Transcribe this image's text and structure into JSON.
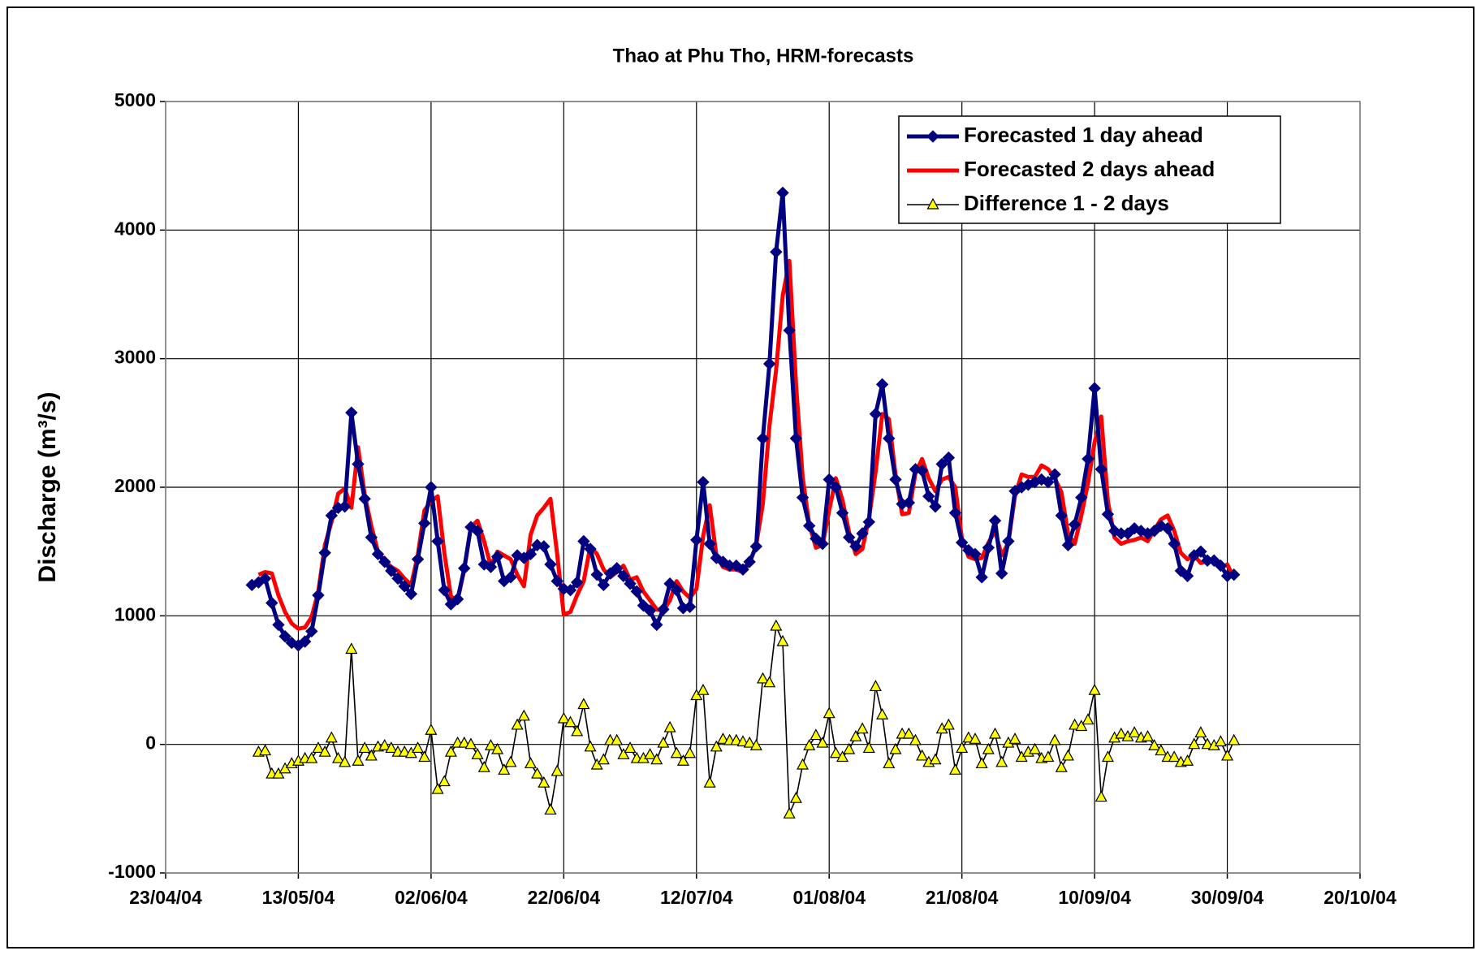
{
  "chart_data": {
    "type": "line",
    "title": "Thao at Phu Tho, HRM-forecasts",
    "ylabel": "Discharge (m³/s)",
    "x": [
      "2004-05-06",
      "2004-05-07",
      "2004-05-08",
      "2004-05-09",
      "2004-05-10",
      "2004-05-11",
      "2004-05-12",
      "2004-05-13",
      "2004-05-14",
      "2004-05-15",
      "2004-05-16",
      "2004-05-17",
      "2004-05-18",
      "2004-05-19",
      "2004-05-20",
      "2004-05-21",
      "2004-05-22",
      "2004-05-23",
      "2004-05-24",
      "2004-05-25",
      "2004-05-26",
      "2004-05-27",
      "2004-05-28",
      "2004-05-29",
      "2004-05-30",
      "2004-05-31",
      "2004-06-01",
      "2004-06-02",
      "2004-06-03",
      "2004-06-04",
      "2004-06-05",
      "2004-06-06",
      "2004-06-07",
      "2004-06-08",
      "2004-06-09",
      "2004-06-10",
      "2004-06-11",
      "2004-06-12",
      "2004-06-13",
      "2004-06-14",
      "2004-06-15",
      "2004-06-16",
      "2004-06-17",
      "2004-06-18",
      "2004-06-19",
      "2004-06-20",
      "2004-06-21",
      "2004-06-22",
      "2004-06-23",
      "2004-06-24",
      "2004-06-25",
      "2004-06-26",
      "2004-06-27",
      "2004-06-28",
      "2004-06-29",
      "2004-06-30",
      "2004-07-01",
      "2004-07-02",
      "2004-07-03",
      "2004-07-04",
      "2004-07-05",
      "2004-07-06",
      "2004-07-07",
      "2004-07-08",
      "2004-07-09",
      "2004-07-10",
      "2004-07-11",
      "2004-07-12",
      "2004-07-13",
      "2004-07-14",
      "2004-07-15",
      "2004-07-16",
      "2004-07-17",
      "2004-07-18",
      "2004-07-19",
      "2004-07-20",
      "2004-07-21",
      "2004-07-22",
      "2004-07-23",
      "2004-07-24",
      "2004-07-25",
      "2004-07-26",
      "2004-07-27",
      "2004-07-28",
      "2004-07-29",
      "2004-07-30",
      "2004-07-31",
      "2004-08-01",
      "2004-08-02",
      "2004-08-03",
      "2004-08-04",
      "2004-08-05",
      "2004-08-06",
      "2004-08-07",
      "2004-08-08",
      "2004-08-09",
      "2004-08-10",
      "2004-08-11",
      "2004-08-12",
      "2004-08-13",
      "2004-08-14",
      "2004-08-15",
      "2004-08-16",
      "2004-08-17",
      "2004-08-18",
      "2004-08-19",
      "2004-08-20",
      "2004-08-21",
      "2004-08-22",
      "2004-08-23",
      "2004-08-24",
      "2004-08-25",
      "2004-08-26",
      "2004-08-27",
      "2004-08-28",
      "2004-08-29",
      "2004-08-30",
      "2004-08-31",
      "2004-09-01",
      "2004-09-02",
      "2004-09-03",
      "2004-09-04",
      "2004-09-05",
      "2004-09-06",
      "2004-09-07",
      "2004-09-08",
      "2004-09-09",
      "2004-09-10",
      "2004-09-11",
      "2004-09-12",
      "2004-09-13",
      "2004-09-14",
      "2004-09-15",
      "2004-09-16",
      "2004-09-17",
      "2004-09-18",
      "2004-09-19",
      "2004-09-20",
      "2004-09-21",
      "2004-09-22",
      "2004-09-23",
      "2004-09-24",
      "2004-09-25",
      "2004-09-26",
      "2004-09-27",
      "2004-09-28",
      "2004-09-29",
      "2004-09-30",
      "2004-10-01"
    ],
    "series": [
      {
        "name": "Forecasted 2 days ahead",
        "color": "#ff0000",
        "marker": "none",
        "values": [
          null,
          1320,
          1340,
          1330,
          1160,
          1030,
          940,
          900,
          910,
          990,
          1190,
          1550,
          1730,
          1950,
          1990,
          1840,
          2310,
          1940,
          1700,
          1500,
          1430,
          1380,
          1350,
          1290,
          1240,
          1470,
          1820,
          1890,
          1930,
          1490,
          1150,
          1120,
          1360,
          1690,
          1740,
          1580,
          1390,
          1500,
          1470,
          1440,
          1320,
          1230,
          1630,
          1780,
          1840,
          1910,
          1480,
          1010,
          1030,
          1160,
          1270,
          1540,
          1480,
          1360,
          1300,
          1340,
          1390,
          1280,
          1300,
          1190,
          1120,
          1050,
          1040,
          1120,
          1270,
          1190,
          1140,
          1210,
          1620,
          1860,
          1470,
          1380,
          1360,
          1360,
          1340,
          1410,
          1550,
          1870,
          2480,
          2910,
          3490,
          3760,
          2800,
          2080,
          1710,
          1530,
          1550,
          1820,
          2070,
          1900,
          1650,
          1480,
          1520,
          1760,
          2120,
          2570,
          2530,
          2100,
          1790,
          1800,
          2110,
          2220,
          2070,
          1970,
          2060,
          2080,
          2000,
          1600,
          1460,
          1440,
          1450,
          1570,
          1660,
          1470,
          1570,
          1930,
          2100,
          2080,
          2080,
          2170,
          2140,
          2070,
          1960,
          1640,
          1560,
          1780,
          2030,
          2350,
          2550,
          1890,
          1610,
          1560,
          1580,
          1590,
          1610,
          1580,
          1670,
          1750,
          1780,
          1660,
          1490,
          1440,
          1470,
          1410,
          1430,
          1440,
          1370,
          1400,
          1290
        ]
      },
      {
        "name": "Forecasted 1 day ahead",
        "color": "#000080",
        "marker": "diamond",
        "values": [
          1240,
          1260,
          1290,
          1100,
          930,
          840,
          790,
          770,
          800,
          880,
          1160,
          1490,
          1780,
          1840,
          1850,
          2580,
          2180,
          1910,
          1610,
          1480,
          1420,
          1350,
          1290,
          1230,
          1170,
          1440,
          1720,
          2000,
          1580,
          1200,
          1090,
          1130,
          1370,
          1690,
          1660,
          1400,
          1380,
          1460,
          1270,
          1300,
          1470,
          1450,
          1480,
          1550,
          1540,
          1400,
          1270,
          1210,
          1200,
          1260,
          1580,
          1520,
          1320,
          1240,
          1330,
          1370,
          1310,
          1250,
          1190,
          1080,
          1040,
          930,
          1050,
          1250,
          1200,
          1060,
          1070,
          1590,
          2040,
          1560,
          1450,
          1420,
          1390,
          1390,
          1360,
          1420,
          1540,
          2380,
          2960,
          3830,
          4290,
          3220,
          2380,
          1920,
          1700,
          1600,
          1560,
          2060,
          2000,
          1800,
          1610,
          1540,
          1640,
          1730,
          2570,
          2800,
          2380,
          2060,
          1870,
          1880,
          2140,
          2130,
          1930,
          1850,
          2180,
          2230,
          1800,
          1570,
          1510,
          1480,
          1300,
          1530,
          1740,
          1330,
          1580,
          1970,
          2000,
          2020,
          2040,
          2060,
          2040,
          2100,
          1780,
          1550,
          1710,
          1920,
          2220,
          2770,
          2140,
          1790,
          1660,
          1640,
          1640,
          1680,
          1660,
          1640,
          1660,
          1700,
          1680,
          1560,
          1350,
          1310,
          1470,
          1500,
          1430,
          1430,
          1390,
          1310,
          1320
        ]
      },
      {
        "name": "Difference 1 - 2 days",
        "color": "#000000",
        "marker": "triangle",
        "marker_color": "#ffff00",
        "values": [
          null,
          -60,
          -50,
          -230,
          -230,
          -190,
          -150,
          -130,
          -110,
          -110,
          -30,
          -60,
          50,
          -110,
          -140,
          740,
          -130,
          -30,
          -90,
          -20,
          -10,
          -30,
          -60,
          -60,
          -70,
          -30,
          -100,
          110,
          -350,
          -290,
          -60,
          10,
          10,
          0,
          -80,
          -180,
          -10,
          -40,
          -200,
          -140,
          150,
          220,
          -150,
          -230,
          -300,
          -510,
          -210,
          200,
          170,
          100,
          310,
          -20,
          -160,
          -120,
          30,
          30,
          -80,
          -30,
          -110,
          -110,
          -80,
          -120,
          10,
          130,
          -70,
          -130,
          -70,
          380,
          420,
          -300,
          -20,
          40,
          30,
          30,
          20,
          10,
          -10,
          510,
          480,
          920,
          800,
          -540,
          -420,
          -160,
          -10,
          70,
          10,
          240,
          -70,
          -100,
          -40,
          60,
          120,
          -30,
          450,
          230,
          -150,
          -40,
          80,
          80,
          30,
          -90,
          -140,
          -120,
          120,
          150,
          -200,
          -30,
          50,
          40,
          -150,
          -40,
          80,
          -140,
          10,
          40,
          -100,
          -60,
          -40,
          -110,
          -100,
          30,
          -180,
          -90,
          150,
          140,
          190,
          420,
          -410,
          -100,
          50,
          80,
          60,
          90,
          50,
          60,
          -10,
          -50,
          -100,
          -100,
          -140,
          -130,
          0,
          90,
          0,
          -10,
          20,
          -90,
          30
        ]
      }
    ],
    "legend_order": [
      1,
      0,
      2
    ],
    "xlim": [
      "2004-04-23",
      "2004-10-20"
    ],
    "xticks": [
      {
        "value": "2004-04-23",
        "label": "23/04/04"
      },
      {
        "value": "2004-05-13",
        "label": "13/05/04"
      },
      {
        "value": "2004-06-02",
        "label": "02/06/04"
      },
      {
        "value": "2004-06-22",
        "label": "22/06/04"
      },
      {
        "value": "2004-07-12",
        "label": "12/07/04"
      },
      {
        "value": "2004-08-01",
        "label": "01/08/04"
      },
      {
        "value": "2004-08-21",
        "label": "21/08/04"
      },
      {
        "value": "2004-09-10",
        "label": "10/09/04"
      },
      {
        "value": "2004-09-30",
        "label": "30/09/04"
      },
      {
        "value": "2004-10-20",
        "label": "20/10/04"
      }
    ],
    "ylim": [
      -1000,
      5000
    ],
    "yticks": [
      -1000,
      0,
      1000,
      2000,
      3000,
      4000,
      5000
    ],
    "grid": true,
    "legend": "upper right"
  }
}
